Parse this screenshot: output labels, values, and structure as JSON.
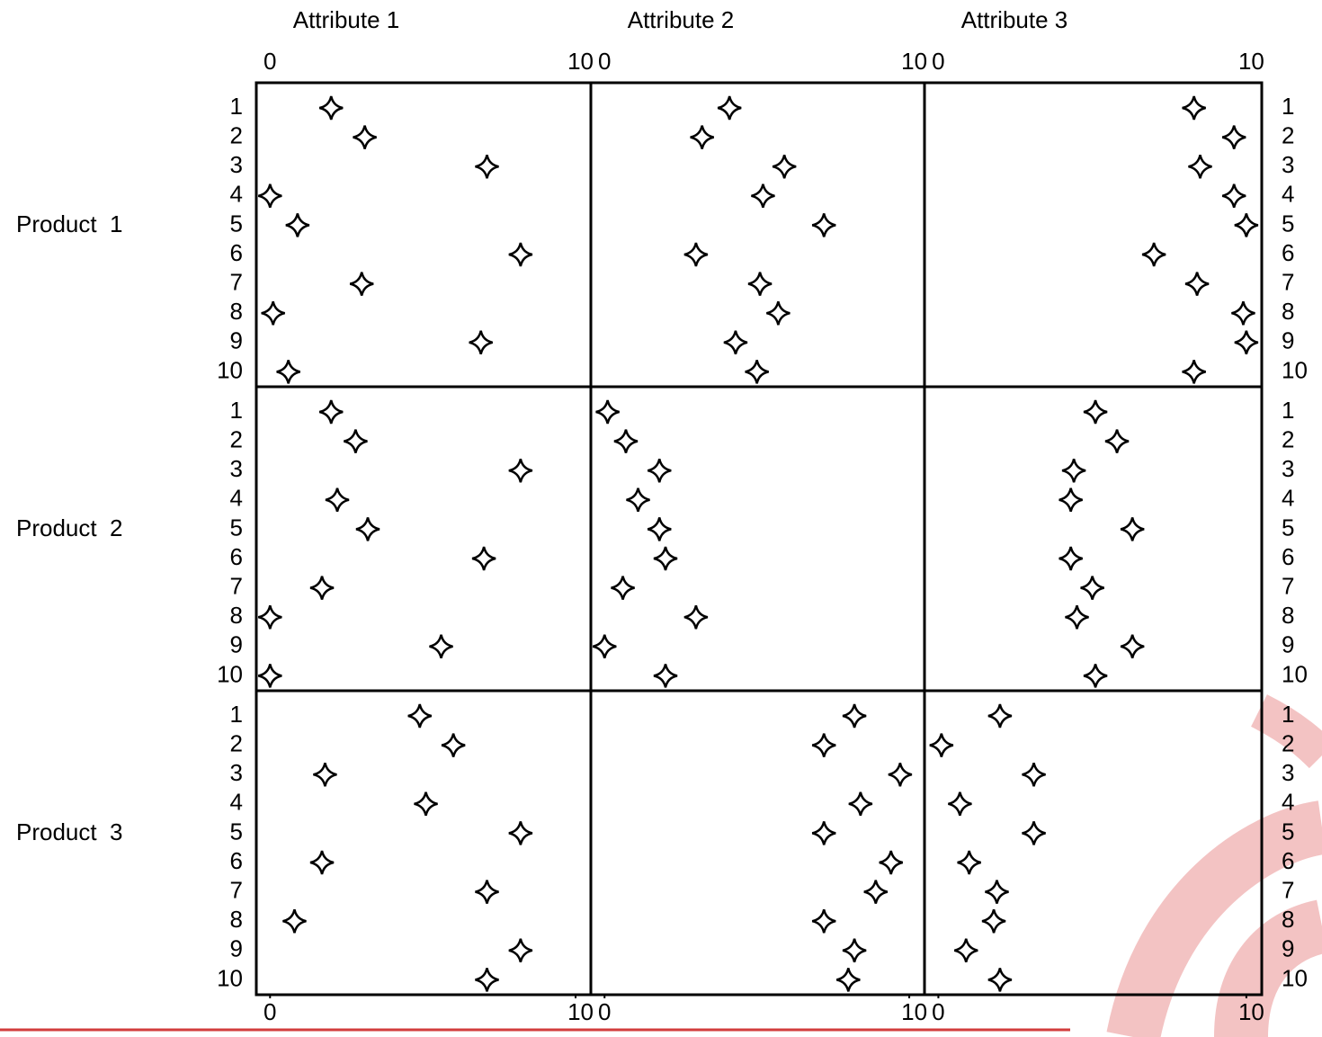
{
  "chart_data": {
    "type": "dot",
    "columns": [
      "Attribute 1",
      "Attribute 2",
      "Attribute 3"
    ],
    "rows": [
      "Product  1",
      "Product  2",
      "Product  3"
    ],
    "categories": [
      "1",
      "2",
      "3",
      "4",
      "5",
      "6",
      "7",
      "8",
      "9",
      "10"
    ],
    "xlim": [
      -0.45,
      10.5
    ],
    "xticks": [
      0,
      10
    ],
    "color": "#000000",
    "values": [
      [
        [
          2.0,
          3.1,
          7.1,
          0,
          0.9,
          8.2,
          3.0,
          0.1,
          6.9,
          0.6
        ],
        [
          4.1,
          3.2,
          5.9,
          5.2,
          7.2,
          3.0,
          5.1,
          5.7,
          4.3,
          5.0
        ],
        [
          8.3,
          9.6,
          8.5,
          9.6,
          10.0,
          7.0,
          8.4,
          9.9,
          10.0,
          8.3
        ]
      ],
      [
        [
          2.0,
          2.8,
          8.2,
          2.2,
          3.2,
          7.0,
          1.7,
          0,
          5.6,
          0
        ],
        [
          0.1,
          0.7,
          1.8,
          1.1,
          1.8,
          2.0,
          0.6,
          3.0,
          0,
          2.0
        ],
        [
          5.1,
          5.8,
          4.4,
          4.3,
          6.3,
          4.3,
          5.0,
          4.5,
          6.3,
          5.1
        ]
      ],
      [
        [
          4.9,
          6.0,
          1.8,
          5.1,
          8.2,
          1.7,
          7.1,
          0.8,
          8.2,
          7.1
        ],
        [
          8.2,
          7.2,
          9.7,
          8.4,
          7.2,
          9.4,
          8.9,
          7.2,
          8.2,
          8.0
        ],
        [
          2.0,
          0.1,
          3.1,
          0.7,
          3.1,
          1.0,
          1.9,
          1.8,
          0.9,
          2.0
        ]
      ]
    ]
  }
}
